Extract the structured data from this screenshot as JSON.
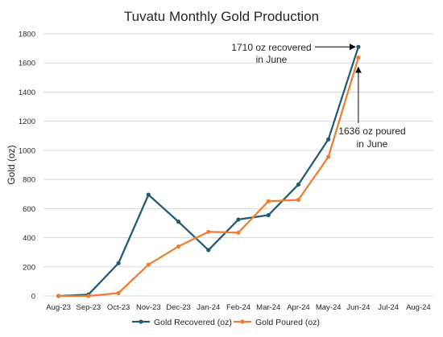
{
  "chart_data": {
    "type": "line",
    "title": "Tuvatu Monthly Gold Production",
    "ylabel": "Gold (oz)",
    "xlabel": "",
    "ylim": [
      0,
      1800
    ],
    "yticks": [
      0,
      200,
      400,
      600,
      800,
      1000,
      1200,
      1400,
      1600,
      1800
    ],
    "grid": true,
    "legend": "bottom",
    "categories": [
      "Aug-23",
      "Sep-23",
      "Oct-23",
      "Nov-23",
      "Dec-23",
      "Jan-24",
      "Feb-24",
      "Mar-24",
      "Apr-24",
      "May-24",
      "Jun-24",
      "Jul-24",
      "Aug-24"
    ],
    "series": [
      {
        "name": "Gold Recovered (oz)",
        "color": "#1f5c73",
        "values": [
          0,
          10,
          225,
          695,
          510,
          315,
          525,
          555,
          765,
          1075,
          1710,
          null,
          null
        ]
      },
      {
        "name": "Gold Poured (oz)",
        "color": "#ed7d31",
        "values": [
          0,
          0,
          20,
          215,
          340,
          440,
          435,
          650,
          660,
          955,
          1636,
          null,
          null
        ]
      }
    ],
    "annotations": [
      {
        "line1": "1710 oz recovered",
        "line2": "in June",
        "target_category": "Jun-24",
        "target_value": 1710
      },
      {
        "line1": "1636 oz poured",
        "line2": "in June",
        "target_category": "Jun-24",
        "target_value": 1636
      }
    ]
  }
}
